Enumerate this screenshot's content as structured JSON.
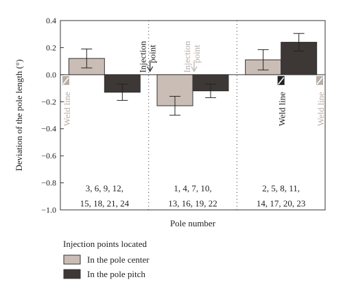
{
  "chart_data": {
    "type": "bar",
    "title": "",
    "xlabel": "Pole number",
    "ylabel": "Deviation of the pole length (°)",
    "ylim": [
      -1.0,
      0.4
    ],
    "yticks": [
      0.4,
      0.2,
      0.0,
      -0.2,
      -0.4,
      -0.6,
      -0.8,
      -1.0
    ],
    "ytick_labels": [
      "0.4",
      "0.2",
      "0.0",
      "−0.2",
      "−0.4",
      "−0.6",
      "−0.8",
      "−1.0"
    ],
    "grid": false,
    "categories": [
      [
        "3, 6, 9, 12,",
        "15, 18, 21, 24"
      ],
      [
        "1, 4, 7, 10,",
        "13, 16, 19, 22"
      ],
      [
        "2, 5, 8, 11,",
        "14, 17, 20, 23"
      ]
    ],
    "series": [
      {
        "name": "In the pole center",
        "color": "#c9bdb6",
        "values": [
          0.12,
          -0.23,
          0.11
        ],
        "error": [
          0.07,
          0.07,
          0.075
        ]
      },
      {
        "name": "In the pole pitch",
        "color": "#3d3836",
        "values": [
          -0.13,
          -0.12,
          0.24
        ],
        "error": [
          0.06,
          0.05,
          0.065
        ]
      }
    ],
    "legend": {
      "title": "Injection points located",
      "placement": "bottom"
    },
    "annotations": [
      {
        "text": "Weld line",
        "group": 0,
        "series": 0
      },
      {
        "text": "Injection point",
        "group": 0,
        "series": 1
      },
      {
        "text": "Injection point",
        "group": 1,
        "series": 0
      },
      {
        "text": "Weld line",
        "group": 2,
        "series": 1
      },
      {
        "text": "Weld line",
        "group": 2,
        "series": 0
      }
    ]
  }
}
